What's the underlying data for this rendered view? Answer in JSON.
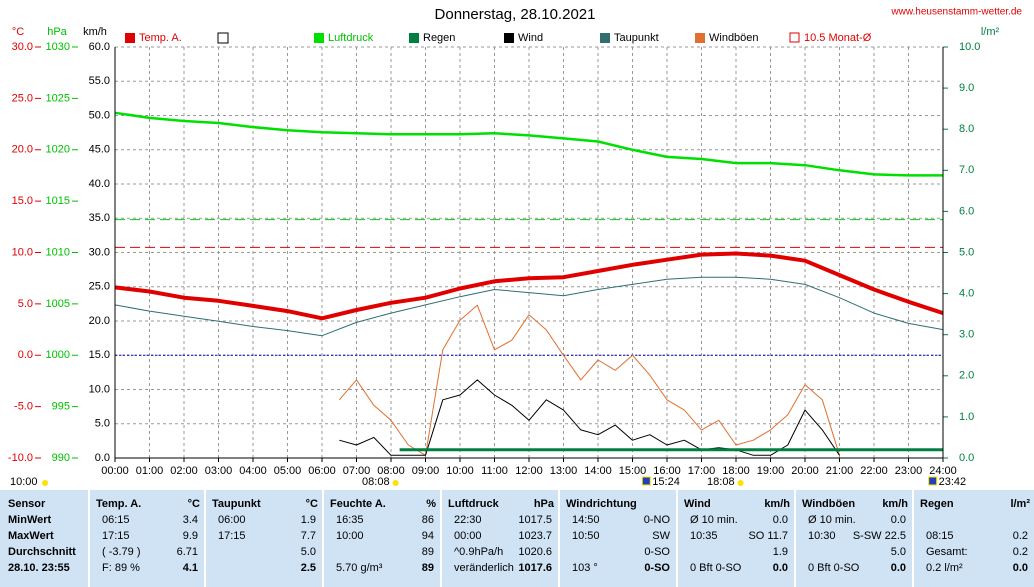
{
  "chart_data": {
    "type": "line",
    "title": "Donnerstag, 28.10.2021",
    "source": "www.heusenstamm-wetter.de",
    "xlim": [
      0,
      24
    ],
    "xticks": [
      {
        "value": 0,
        "label": "00:00"
      },
      {
        "value": 1,
        "label": "01:00"
      },
      {
        "value": 2,
        "label": "02:00"
      },
      {
        "value": 3,
        "label": "03:00"
      },
      {
        "value": 4,
        "label": "04:00"
      },
      {
        "value": 5,
        "label": "05:00"
      },
      {
        "value": 6,
        "label": "06:00"
      },
      {
        "value": 7,
        "label": "07:00"
      },
      {
        "value": 8,
        "label": "08:00"
      },
      {
        "value": 9,
        "label": "09:00"
      },
      {
        "value": 10,
        "label": "10:00"
      },
      {
        "value": 11,
        "label": "11:00"
      },
      {
        "value": 12,
        "label": "12:00"
      },
      {
        "value": 13,
        "label": "13:00"
      },
      {
        "value": 14,
        "label": "14:00"
      },
      {
        "value": 15,
        "label": "15:00"
      },
      {
        "value": 16,
        "label": "16:00"
      },
      {
        "value": 17,
        "label": "17:00"
      },
      {
        "value": 18,
        "label": "18:00"
      },
      {
        "value": 19,
        "label": "19:00"
      },
      {
        "value": 20,
        "label": "20:00"
      },
      {
        "value": 21,
        "label": "21:00"
      },
      {
        "value": 22,
        "label": "22:00"
      },
      {
        "value": 23,
        "label": "23:00"
      },
      {
        "value": 24,
        "label": "24:00"
      }
    ],
    "ylabel": "km/h",
    "ylim": [
      0,
      60
    ],
    "yticks": [
      {
        "value": 0,
        "label": "0.0"
      },
      {
        "value": 5,
        "label": "5.0"
      },
      {
        "value": 10,
        "label": "10.0"
      },
      {
        "value": 15,
        "label": "15.0"
      },
      {
        "value": 20,
        "label": "20.0"
      },
      {
        "value": 25,
        "label": "25.0"
      },
      {
        "value": 30,
        "label": "30.0"
      },
      {
        "value": 35,
        "label": "35.0"
      },
      {
        "value": 40,
        "label": "40.0"
      },
      {
        "value": 45,
        "label": "45.0"
      },
      {
        "value": 50,
        "label": "50.0"
      },
      {
        "value": 55,
        "label": "55.0"
      },
      {
        "value": 60,
        "label": "60.0"
      }
    ],
    "y_temp": {
      "label": "°C",
      "color": "#e00000",
      "lim": [
        -10,
        30
      ],
      "ticks": [
        {
          "value": -10,
          "label": "-10.0"
        },
        {
          "value": -5,
          "label": "-5.0"
        },
        {
          "value": 0,
          "label": "0.0"
        },
        {
          "value": 5,
          "label": "5.0"
        },
        {
          "value": 10,
          "label": "10.0"
        },
        {
          "value": 15,
          "label": "15.0"
        },
        {
          "value": 20,
          "label": "20.0"
        },
        {
          "value": 25,
          "label": "25.0"
        },
        {
          "value": 30,
          "label": "30.0"
        }
      ]
    },
    "y_hpa": {
      "label": "hPa",
      "color": "#00c000",
      "lim": [
        990,
        1030
      ],
      "ticks": [
        990,
        995,
        1000,
        1005,
        1010,
        1015,
        1020,
        1025,
        1030
      ]
    },
    "y2label": "l/m²",
    "y2color": "#008040",
    "y2lim": [
      0,
      10
    ],
    "y2ticks": [
      {
        "value": 0,
        "label": "0.0"
      },
      {
        "value": 1,
        "label": "1.0"
      },
      {
        "value": 2,
        "label": "2.0"
      },
      {
        "value": 3,
        "label": "3.0"
      },
      {
        "value": 4,
        "label": "4.0"
      },
      {
        "value": 5,
        "label": "5.0"
      },
      {
        "value": 6,
        "label": "6.0"
      },
      {
        "value": 7,
        "label": "7.0"
      },
      {
        "value": 8,
        "label": "8.0"
      },
      {
        "value": 9,
        "label": "9.0"
      },
      {
        "value": 10,
        "label": "10.0"
      }
    ],
    "grid": true,
    "series": [
      {
        "name": "Temp. A.",
        "color": "#e00000",
        "width": 4,
        "axis": "y_temp",
        "x": [
          0,
          1,
          2,
          3,
          4,
          5,
          6,
          7,
          8,
          9,
          10,
          11,
          12,
          13,
          14,
          15,
          16,
          17,
          18,
          19,
          20,
          21,
          22,
          23,
          24
        ],
        "values": [
          6.6,
          6.2,
          5.6,
          5.3,
          4.8,
          4.3,
          3.6,
          4.4,
          5.1,
          5.6,
          6.5,
          7.2,
          7.5,
          7.6,
          8.2,
          8.8,
          9.3,
          9.8,
          9.9,
          9.7,
          9.2,
          7.8,
          6.4,
          5.2,
          4.1
        ]
      },
      {
        "name": "Luftdruck",
        "color": "#00e000",
        "width": 2.5,
        "axis": "y_hpa",
        "x": [
          0,
          1,
          2,
          3,
          4,
          5,
          6,
          7,
          8,
          9,
          10,
          11,
          12,
          13,
          14,
          15,
          16,
          17,
          18,
          19,
          20,
          21,
          22,
          23,
          24
        ],
        "values": [
          1023.6,
          1023.1,
          1022.8,
          1022.6,
          1022.2,
          1021.9,
          1021.7,
          1021.6,
          1021.5,
          1021.5,
          1021.5,
          1021.6,
          1021.4,
          1021.1,
          1020.8,
          1020.0,
          1019.3,
          1019.1,
          1018.7,
          1018.7,
          1018.5,
          1018.0,
          1017.6,
          1017.5,
          1017.5
        ]
      },
      {
        "name": "Regen",
        "color": "#008040",
        "width": 3,
        "axis": "y2",
        "x": [
          8.25,
          24
        ],
        "values": [
          0.2,
          0.2
        ]
      },
      {
        "name": "Wind",
        "color": "#000000",
        "width": 1,
        "axis": "y",
        "x": [
          6.5,
          7,
          7.5,
          8,
          8.5,
          9,
          9.5,
          10,
          10.5,
          11,
          11.5,
          12,
          12.5,
          13,
          13.5,
          14,
          14.5,
          15,
          15.5,
          16,
          16.5,
          17,
          17.5,
          18,
          18.5,
          19,
          19.5,
          20,
          20.5,
          21
        ],
        "values": [
          2.6,
          1.9,
          3.0,
          0.4,
          0.4,
          0.4,
          8.5,
          9.2,
          11.4,
          9.2,
          7.7,
          5.5,
          8.5,
          7.0,
          4.1,
          3.4,
          4.8,
          2.6,
          3.4,
          1.9,
          2.6,
          1.2,
          1.5,
          1.2,
          0.4,
          0.4,
          1.9,
          7.0,
          4.1,
          0.4
        ]
      },
      {
        "name": "Taupunkt",
        "color": "#2f6f70",
        "width": 1,
        "axis": "y_temp",
        "x": [
          0,
          1,
          2,
          3,
          4,
          5,
          6,
          7,
          8,
          9,
          10,
          11,
          12,
          13,
          14,
          15,
          16,
          17,
          18,
          19,
          20,
          21,
          22,
          23,
          24
        ],
        "values": [
          4.9,
          4.3,
          3.8,
          3.3,
          2.8,
          2.4,
          1.9,
          3.2,
          4.1,
          4.9,
          5.7,
          6.4,
          6.1,
          5.8,
          6.4,
          6.9,
          7.4,
          7.6,
          7.6,
          7.4,
          6.9,
          5.6,
          4.1,
          3.1,
          2.5
        ]
      },
      {
        "name": "Windböen",
        "color": "#e07030",
        "width": 1,
        "axis": "y",
        "x": [
          6.5,
          7,
          7.5,
          8,
          8.5,
          9,
          9.5,
          10,
          10.5,
          11,
          11.5,
          12,
          12.5,
          13,
          13.5,
          14,
          14.5,
          15,
          15.5,
          16,
          16.5,
          17,
          17.5,
          18,
          18.5,
          19,
          19.5,
          20,
          20.5,
          21
        ],
        "values": [
          8.5,
          11.4,
          7.7,
          5.5,
          1.9,
          0.4,
          15.8,
          20.1,
          22.3,
          15.8,
          17.2,
          20.9,
          18.7,
          15.0,
          11.4,
          14.3,
          12.8,
          15.0,
          12.1,
          8.5,
          7.0,
          4.1,
          5.5,
          1.9,
          2.6,
          4.1,
          6.3,
          10.7,
          8.5,
          0.4
        ]
      }
    ],
    "reference_lines": [
      {
        "name": "10.5 Monat-Ø",
        "axis": "y_temp",
        "value": 10.5,
        "color": "#e00000",
        "dash": "10 5"
      },
      {
        "axis": "y_hpa",
        "value": 1013.2,
        "color": "#00d000",
        "dash": "10 5"
      },
      {
        "axis": "y_temp",
        "value": 0,
        "color": "#0000c0",
        "dash": "2 2"
      }
    ],
    "markers": [
      {
        "x": 8.133,
        "label": "08:08",
        "kind": "sun"
      },
      {
        "x": 15.4,
        "label": "15:24",
        "kind": "moon"
      },
      {
        "x": 18.133,
        "label": "18:08",
        "kind": "sun"
      },
      {
        "x": 23.7,
        "label": "23:42",
        "kind": "moon"
      }
    ],
    "day_length": "10:00"
  },
  "table": {
    "labels": [
      "Sensor",
      "MinWert",
      "MaxWert",
      "Durchschnitt",
      "28.10. 23:55"
    ],
    "columns": [
      {
        "header": [
          "Temp. A.",
          "°C"
        ],
        "rows": [
          {
            "l": "06:15",
            "r": "3.4"
          },
          {
            "l": "17:15",
            "r": "9.9"
          },
          {
            "l": "( -3.79 )",
            "r": "6.71"
          },
          {
            "l": "F: 89 %",
            "r": "4.1"
          }
        ]
      },
      {
        "header": [
          "Taupunkt",
          "°C"
        ],
        "rows": [
          {
            "l": "06:00",
            "r": "1.9"
          },
          {
            "l": "17:15",
            "r": "7.7"
          },
          {
            "r": "5.0"
          },
          {
            "r": "2.5"
          }
        ]
      },
      {
        "header": [
          "Feuchte A.",
          "%"
        ],
        "rows": [
          {
            "l": "16:35",
            "r": "86"
          },
          {
            "l": "10:00",
            "r": "94"
          },
          {
            "r": "89"
          },
          {
            "l": "5.70 g/m³",
            "r": "89"
          }
        ]
      },
      {
        "header": [
          "Luftdruck",
          "hPa"
        ],
        "rows": [
          {
            "l": "22:30",
            "r": "1017.5"
          },
          {
            "l": "00:00",
            "r": "1023.7"
          },
          {
            "l": "^0.9hPa/h",
            "r": "1020.6"
          },
          {
            "l": "veränderlich",
            "r": "1017.6"
          }
        ]
      },
      {
        "header": [
          "Windrichtung"
        ],
        "rows": [
          {
            "l": "14:50",
            "r": "0-NO"
          },
          {
            "l": "10:50",
            "r": "SW"
          },
          {
            "r": "0-SO"
          },
          {
            "l": "103 °",
            "r": "0-SO"
          }
        ]
      },
      {
        "header": [
          "Wind",
          "km/h"
        ],
        "rows": [
          {
            "l": "Ø 10 min.",
            "r": "0.0"
          },
          {
            "l": "10:35",
            "r": "SO 11.7"
          },
          {
            "r": "1.9"
          },
          {
            "l": "0 Bft 0-SO",
            "r": "0.0"
          }
        ]
      },
      {
        "header": [
          "Windböen",
          "km/h"
        ],
        "rows": [
          {
            "l": "Ø 10 min.",
            "r": "0.0"
          },
          {
            "l": "10:30",
            "r": "S-SW 22.5"
          },
          {
            "r": "5.0"
          },
          {
            "l": "0 Bft 0-SO",
            "r": "0.0"
          }
        ]
      },
      {
        "header": [
          "Regen",
          "l/m²"
        ],
        "rows": [
          {},
          {
            "l": "08:15",
            "r": "0.2"
          },
          {
            "l": "Gesamt:",
            "r": "0.2"
          },
          {
            "l": "0.2 l/m²",
            "r": "0.0"
          }
        ]
      }
    ]
  }
}
